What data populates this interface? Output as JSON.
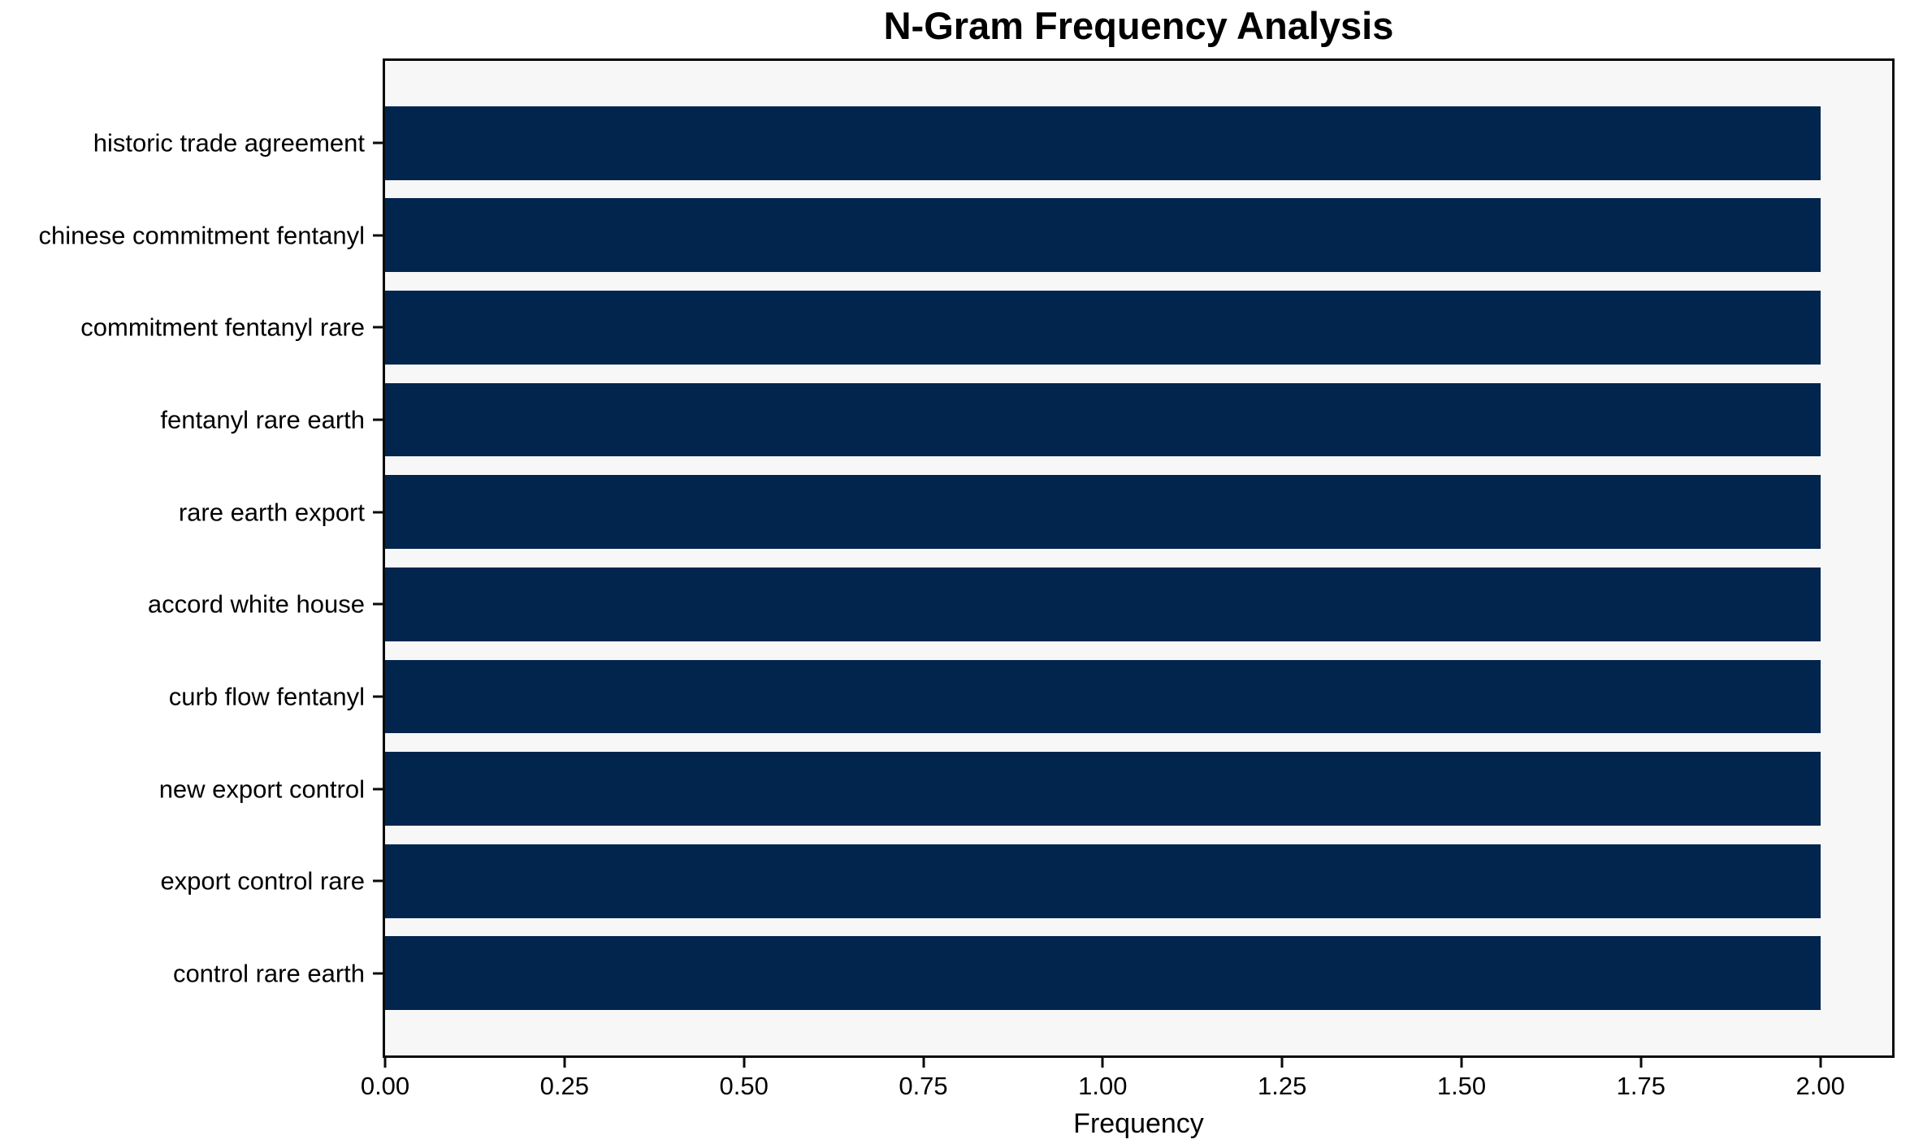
{
  "chart_data": {
    "type": "bar",
    "orientation": "horizontal",
    "title": "N-Gram Frequency Analysis",
    "xlabel": "Frequency",
    "ylabel": "",
    "categories": [
      "historic trade agreement",
      "chinese commitment fentanyl",
      "commitment fentanyl rare",
      "fentanyl rare earth",
      "rare earth export",
      "accord white house",
      "curb flow fentanyl",
      "new export control",
      "export control rare",
      "control rare earth"
    ],
    "values": [
      2,
      2,
      2,
      2,
      2,
      2,
      2,
      2,
      2,
      2
    ],
    "xlim": [
      0,
      2.1
    ],
    "x_ticks": [
      0,
      0.25,
      0.5,
      0.75,
      1.0,
      1.25,
      1.5,
      1.75,
      2.0
    ],
    "x_tick_labels": [
      "0.00",
      "0.25",
      "0.50",
      "0.75",
      "1.00",
      "1.25",
      "1.50",
      "1.75",
      "2.00"
    ],
    "bar_color": "#02254e",
    "plot_background": "#f7f7f7",
    "figure_background": "#ffffff",
    "spine_color": "#0a0a0a",
    "grid": false,
    "legend": null
  }
}
